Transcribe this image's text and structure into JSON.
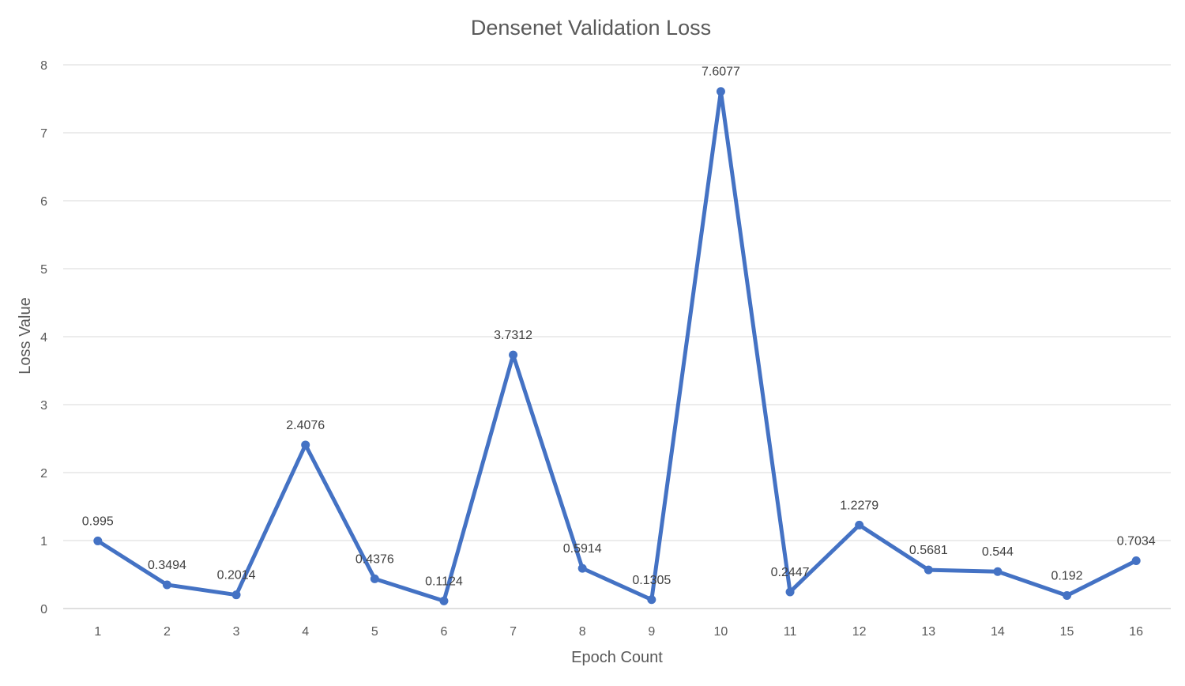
{
  "chart_data": {
    "type": "line",
    "title": "Densenet Validation Loss",
    "xlabel": "Epoch Count",
    "ylabel": "Loss Value",
    "categories": [
      "1",
      "2",
      "3",
      "4",
      "5",
      "6",
      "7",
      "8",
      "9",
      "10",
      "11",
      "12",
      "13",
      "14",
      "15",
      "16"
    ],
    "series": [
      {
        "values": [
          0.995,
          0.3494,
          0.2014,
          2.4076,
          0.4376,
          0.1124,
          3.7312,
          0.5914,
          0.1305,
          7.6077,
          0.2447,
          1.2279,
          0.5681,
          0.544,
          0.192,
          0.7034
        ],
        "data_labels": [
          "0.995",
          "0.3494",
          "0.2014",
          "2.4076",
          "0.4376",
          "0.1124",
          "3.7312",
          "0.5914",
          "0.1305",
          "7.6077",
          "0.2447",
          "1.2279",
          "0.5681",
          "0.544",
          "0.192",
          "0.7034"
        ],
        "color": "#4472c4"
      }
    ],
    "ylim": [
      0,
      8
    ],
    "yticks": [
      "0",
      "1",
      "2",
      "3",
      "4",
      "5",
      "6",
      "7",
      "8"
    ],
    "grid": true,
    "legend": "none"
  }
}
